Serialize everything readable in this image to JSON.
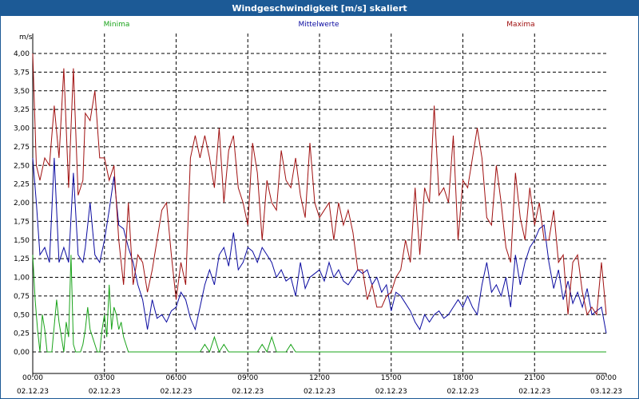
{
  "window": {
    "title": "Windgeschwindigkeit [m/s] skaliert"
  },
  "colors": {
    "frame": "#1c5a96",
    "min": "#1aa31a",
    "mean": "#0a0aa0",
    "max": "#a01010",
    "grid": "#000000"
  },
  "chart_data": {
    "type": "line",
    "title": "Windgeschwindigkeit [m/s] skaliert",
    "ylabel": "m/s",
    "xlabel": "",
    "ylim": [
      -0.1,
      4.3
    ],
    "xlim": [
      0,
      24
    ],
    "yticks": [
      0,
      0.25,
      0.5,
      0.75,
      1.0,
      1.25,
      1.5,
      1.75,
      2.0,
      2.25,
      2.5,
      2.75,
      3.0,
      3.25,
      3.5,
      3.75,
      4.0
    ],
    "ytick_labels": [
      "0,00",
      "0,25",
      "0,50",
      "0,75",
      "1,00",
      "1,25",
      "1,50",
      "1,75",
      "2,00",
      "2,25",
      "2,50",
      "2,75",
      "3,00",
      "3,25",
      "3,50",
      "3,75",
      "4,00"
    ],
    "xticks": [
      0,
      3,
      6,
      9,
      12,
      15,
      18,
      21,
      24
    ],
    "xtick_labels": [
      "00:00",
      "03:00",
      "06:00",
      "09:00",
      "12:00",
      "15:00",
      "18:00",
      "21:00",
      "00:00"
    ],
    "xtick_dates": [
      "02.12.23",
      "02.12.23",
      "02.12.23",
      "02.12.23",
      "02.12.23",
      "02.12.23",
      "02.12.23",
      "02.12.23",
      "03.12.23"
    ],
    "grid": true,
    "series": [
      {
        "name": "Minima",
        "key": "min",
        "x": [
          0,
          0.1,
          0.2,
          0.3,
          0.4,
          0.5,
          0.6,
          0.8,
          1.0,
          1.1,
          1.2,
          1.3,
          1.4,
          1.5,
          1.6,
          1.7,
          1.8,
          1.9,
          2.0,
          2.1,
          2.2,
          2.3,
          2.4,
          2.5,
          2.6,
          2.7,
          2.8,
          2.9,
          3.0,
          3.1,
          3.2,
          3.3,
          3.4,
          3.5,
          3.6,
          3.7,
          3.8,
          3.9,
          4.0,
          4.1,
          4.2,
          4.3,
          4.4,
          5.0,
          6.0,
          6.5,
          6.8,
          7.0,
          7.2,
          7.4,
          7.6,
          7.8,
          8.0,
          8.2,
          8.4,
          8.6,
          8.8,
          9.0,
          9.2,
          9.4,
          9.6,
          9.8,
          10.0,
          10.2,
          10.4,
          10.6,
          10.8,
          11.0,
          11.5,
          12.0,
          12.3,
          12.5,
          12.8,
          13.0,
          13.5,
          14.0,
          14.5,
          14.8,
          15.0,
          15.2,
          15.4,
          15.6,
          16.0,
          17.0,
          17.5,
          18.0,
          18.2,
          18.5,
          18.7,
          18.8,
          19.0,
          19.2,
          19.4,
          19.6,
          19.8,
          20.0,
          20.2,
          20.4,
          20.6,
          20.8,
          21.0,
          21.2,
          21.5,
          21.8,
          22.0,
          22.2,
          22.5,
          22.8,
          23.0,
          23.5,
          24.0
        ],
        "values": [
          1.3,
          0.7,
          0.3,
          0.0,
          0.5,
          0.3,
          0.0,
          0.0,
          0.7,
          0.4,
          0.2,
          0.0,
          0.4,
          0.2,
          1.3,
          0.1,
          0.0,
          0.0,
          0.0,
          0.1,
          0.3,
          0.6,
          0.3,
          0.2,
          0.1,
          0.0,
          0.0,
          0.3,
          0.5,
          0.2,
          0.9,
          0.3,
          0.6,
          0.5,
          0.3,
          0.4,
          0.2,
          0.1,
          0.0,
          0.0,
          0.0,
          0.0,
          0.0,
          0.0,
          0.0,
          0.0,
          0.0,
          0.0,
          0.1,
          0.0,
          0.2,
          0.0,
          0.1,
          0.0,
          0.0,
          0.0,
          0.0,
          0.0,
          0.0,
          0.0,
          0.1,
          0.0,
          0.2,
          0.0,
          0.0,
          0.0,
          0.1,
          0.0,
          0.0,
          0.0,
          0.0,
          0.0,
          0.0,
          0.0,
          0.0,
          0.0,
          0.0,
          0.0,
          0.0,
          0.0,
          0.0,
          0.0,
          0.0,
          0.0,
          0.0,
          0.0,
          0.0,
          0.0,
          0.0,
          0.0,
          0.0,
          0.0,
          0.0,
          0.0,
          0.0,
          0.0,
          0.0,
          0.0,
          0.0,
          0.0,
          0.0,
          0.0,
          0.0,
          0.0,
          0.0,
          0.0,
          0.0,
          0.0,
          0.0,
          0.0,
          0.0
        ]
      },
      {
        "name": "Mittelwerte",
        "key": "mean",
        "x": [
          0,
          0.15,
          0.3,
          0.5,
          0.7,
          0.9,
          1.1,
          1.3,
          1.5,
          1.7,
          1.9,
          2.1,
          2.2,
          2.4,
          2.6,
          2.8,
          3.0,
          3.2,
          3.4,
          3.6,
          3.8,
          4.0,
          4.2,
          4.4,
          4.6,
          4.8,
          5.0,
          5.2,
          5.4,
          5.6,
          5.8,
          6.0,
          6.2,
          6.4,
          6.6,
          6.8,
          7.0,
          7.2,
          7.4,
          7.6,
          7.8,
          8.0,
          8.2,
          8.4,
          8.6,
          8.8,
          9.0,
          9.2,
          9.4,
          9.6,
          9.8,
          10.0,
          10.2,
          10.4,
          10.6,
          10.8,
          11.0,
          11.2,
          11.4,
          11.6,
          11.8,
          12.0,
          12.2,
          12.4,
          12.6,
          12.8,
          13.0,
          13.2,
          13.4,
          13.6,
          13.8,
          14.0,
          14.2,
          14.4,
          14.6,
          14.8,
          15.0,
          15.2,
          15.4,
          15.6,
          15.8,
          16.0,
          16.2,
          16.4,
          16.6,
          16.8,
          17.0,
          17.2,
          17.4,
          17.6,
          17.8,
          18.0,
          18.2,
          18.4,
          18.6,
          18.8,
          19.0,
          19.2,
          19.4,
          19.6,
          19.8,
          20.0,
          20.2,
          20.4,
          20.6,
          20.8,
          21.0,
          21.2,
          21.4,
          21.6,
          21.8,
          22.0,
          22.2,
          22.4,
          22.6,
          22.8,
          23.0,
          23.2,
          23.4,
          23.6,
          23.8,
          24.0
        ],
        "values": [
          2.6,
          2.0,
          1.3,
          1.4,
          1.2,
          2.6,
          1.2,
          1.4,
          1.2,
          2.4,
          1.3,
          1.2,
          1.4,
          2.0,
          1.3,
          1.2,
          1.5,
          1.9,
          2.35,
          1.7,
          1.65,
          1.4,
          1.2,
          0.9,
          0.7,
          0.3,
          0.7,
          0.45,
          0.5,
          0.4,
          0.55,
          0.6,
          0.8,
          0.7,
          0.45,
          0.3,
          0.6,
          0.9,
          1.1,
          0.9,
          1.3,
          1.4,
          1.15,
          1.6,
          1.1,
          1.2,
          1.4,
          1.35,
          1.2,
          1.4,
          1.3,
          1.2,
          1.0,
          1.1,
          0.95,
          1.0,
          0.75,
          1.2,
          0.85,
          1.0,
          1.05,
          1.1,
          0.95,
          1.2,
          1.0,
          1.1,
          0.95,
          0.9,
          1.0,
          1.1,
          1.05,
          1.1,
          0.9,
          1.0,
          0.8,
          0.9,
          0.55,
          0.8,
          0.75,
          0.65,
          0.55,
          0.4,
          0.3,
          0.5,
          0.4,
          0.5,
          0.55,
          0.45,
          0.5,
          0.6,
          0.7,
          0.6,
          0.75,
          0.6,
          0.5,
          0.9,
          1.2,
          0.8,
          0.9,
          0.75,
          1.0,
          0.6,
          1.3,
          0.9,
          1.2,
          1.4,
          1.5,
          1.65,
          1.7,
          1.2,
          0.85,
          1.1,
          0.7,
          0.95,
          0.65,
          0.8,
          0.6,
          0.85,
          0.5,
          0.55,
          0.6,
          0.25
        ]
      },
      {
        "name": "Maxima",
        "key": "max",
        "x": [
          0,
          0.15,
          0.3,
          0.5,
          0.7,
          0.9,
          1.1,
          1.3,
          1.5,
          1.7,
          1.9,
          2.1,
          2.2,
          2.4,
          2.6,
          2.8,
          3.0,
          3.2,
          3.4,
          3.6,
          3.8,
          4.0,
          4.2,
          4.4,
          4.6,
          4.8,
          5.0,
          5.2,
          5.4,
          5.6,
          5.8,
          6.0,
          6.2,
          6.4,
          6.6,
          6.8,
          7.0,
          7.2,
          7.4,
          7.6,
          7.8,
          8.0,
          8.2,
          8.4,
          8.6,
          8.8,
          9.0,
          9.2,
          9.4,
          9.6,
          9.8,
          10.0,
          10.2,
          10.4,
          10.6,
          10.8,
          11.0,
          11.2,
          11.4,
          11.6,
          11.8,
          12.0,
          12.2,
          12.4,
          12.6,
          12.8,
          13.0,
          13.2,
          13.4,
          13.6,
          13.8,
          14.0,
          14.2,
          14.4,
          14.6,
          14.8,
          15.0,
          15.2,
          15.4,
          15.6,
          15.8,
          16.0,
          16.2,
          16.4,
          16.6,
          16.8,
          17.0,
          17.2,
          17.4,
          17.6,
          17.8,
          18.0,
          18.2,
          18.4,
          18.6,
          18.8,
          19.0,
          19.2,
          19.4,
          19.6,
          19.8,
          20.0,
          20.2,
          20.4,
          20.6,
          20.8,
          21.0,
          21.2,
          21.4,
          21.6,
          21.8,
          22.0,
          22.2,
          22.4,
          22.6,
          22.8,
          23.0,
          23.2,
          23.4,
          23.6,
          23.8,
          24.0
        ],
        "values": [
          4.0,
          2.5,
          2.3,
          2.6,
          2.5,
          3.3,
          2.6,
          3.8,
          2.2,
          3.8,
          2.1,
          2.3,
          3.2,
          3.1,
          3.5,
          2.6,
          2.6,
          2.3,
          2.5,
          1.5,
          0.9,
          2.0,
          0.9,
          1.3,
          1.2,
          0.8,
          1.1,
          1.5,
          1.9,
          2.0,
          1.3,
          0.7,
          1.2,
          0.9,
          2.6,
          2.9,
          2.6,
          2.9,
          2.6,
          2.2,
          3.0,
          2.0,
          2.7,
          2.9,
          2.2,
          2.0,
          1.7,
          2.8,
          2.4,
          1.5,
          2.3,
          2.0,
          1.9,
          2.7,
          2.3,
          2.2,
          2.6,
          2.1,
          1.8,
          2.8,
          2.0,
          1.8,
          1.9,
          2.0,
          1.5,
          2.0,
          1.7,
          1.9,
          1.6,
          1.1,
          1.1,
          0.7,
          0.9,
          0.6,
          0.6,
          0.75,
          0.8,
          1.0,
          1.1,
          1.5,
          1.2,
          2.2,
          1.3,
          2.2,
          2.0,
          3.3,
          2.1,
          2.2,
          2.0,
          2.9,
          1.5,
          2.3,
          2.2,
          2.6,
          3.0,
          2.6,
          1.8,
          1.7,
          2.5,
          2.0,
          1.4,
          1.2,
          2.4,
          1.8,
          1.5,
          2.2,
          1.7,
          2.0,
          1.5,
          1.5,
          1.9,
          1.2,
          1.3,
          0.5,
          1.2,
          1.3,
          0.8,
          0.5,
          0.6,
          0.5,
          1.2,
          0.5
        ]
      }
    ]
  }
}
